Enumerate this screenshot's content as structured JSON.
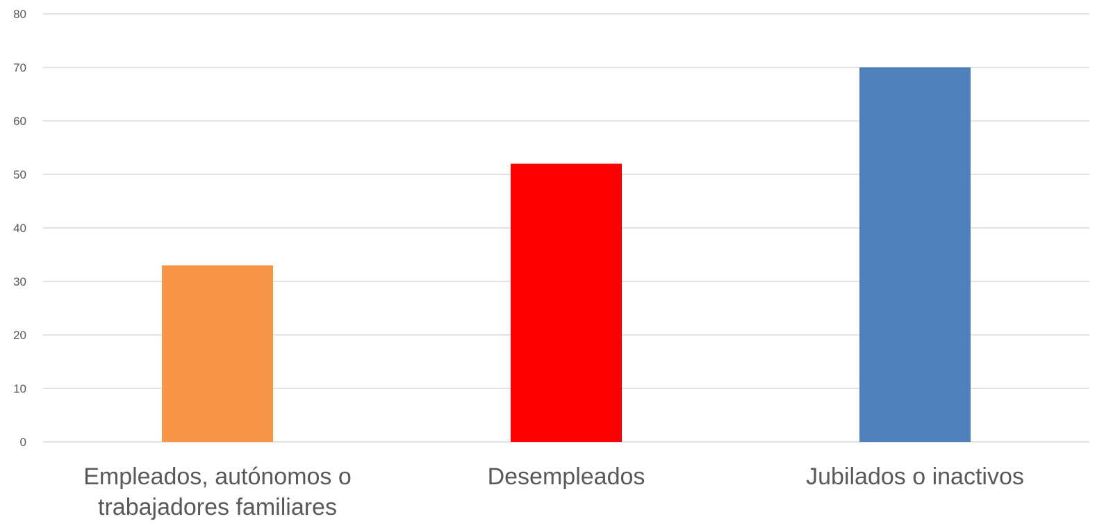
{
  "chart_data": {
    "type": "bar",
    "categories": [
      "Empleados, autónomos o trabajadores familiares",
      "Desempleados",
      "Jubilados o inactivos"
    ],
    "category_label_lines": [
      [
        "Empleados, autónomos o",
        "trabajadores familiares"
      ],
      [
        "Desempleados"
      ],
      [
        "Jubilados o inactivos"
      ]
    ],
    "values": [
      33,
      52,
      70
    ],
    "bar_colors": [
      "#F79646",
      "#FF0000",
      "#4F81BD"
    ],
    "title": "",
    "xlabel": "",
    "ylabel": "",
    "ylim": [
      0,
      80
    ],
    "yticks": [
      0,
      10,
      20,
      30,
      40,
      50,
      60,
      70,
      80
    ],
    "grid": true,
    "legend": "none"
  }
}
